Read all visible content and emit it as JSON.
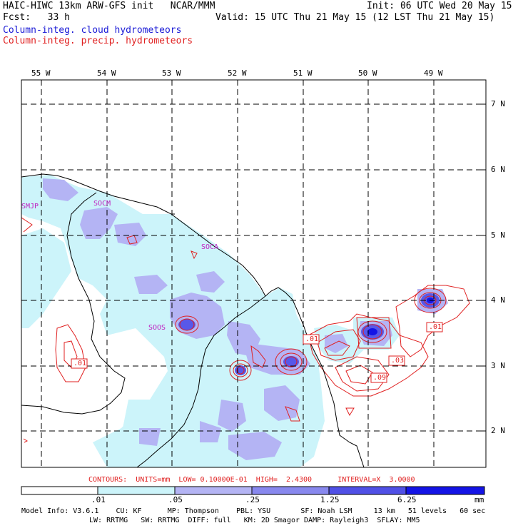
{
  "header": {
    "title_left": "HAIC-HIWC 13km ARW-GFS init   NCAR/MMM",
    "init": "Init: 06 UTC Wed 20 May 15",
    "fcst": "Fcst:   33 h",
    "valid": "Valid: 15 UTC Thu 21 May 15 (12 LST Thu 21 May 15)",
    "field1": "Column-integ. cloud hydrometeors",
    "field2": "Column-integ. precip. hydrometeors"
  },
  "lon_labels": [
    "55 W",
    "54 W",
    "53 W",
    "52 W",
    "51 W",
    "50 W",
    "49 W"
  ],
  "lat_labels": [
    "7 N",
    "6 N",
    "5 N",
    "4 N",
    "3 N",
    "2 N"
  ],
  "stations": [
    "SMJP",
    "SOCM",
    "SOCA",
    "SOOS"
  ],
  "contour_labels": [
    ".01",
    ".01",
    ".01",
    ".03",
    ".09"
  ],
  "contours_line": "CONTOURS:  UNITS=mm  LOW= 0.10000E-01  HIGH=  2.4300      INTERVAL=X  3.0000",
  "colorbar": {
    "ticks": [
      ".01",
      ".05",
      ".25",
      "1.25",
      "6.25"
    ],
    "unit": "mm",
    "colors": [
      "#ffffff",
      "#ccf4fa",
      "#b4b4f4",
      "#8888ee",
      "#5050e6",
      "#1414e6"
    ]
  },
  "model_info": {
    "line1": "Model Info: V3.6.1    CU: KF      MP: Thompson    PBL: YSU       SF: Noah LSM     13 km   51 levels   60 sec",
    "line2": "LW: RRTMG   SW: RRTMG  DIFF: full   KM: 2D Smagor DAMP: Rayleigh3  SFLAY: MM5"
  }
}
